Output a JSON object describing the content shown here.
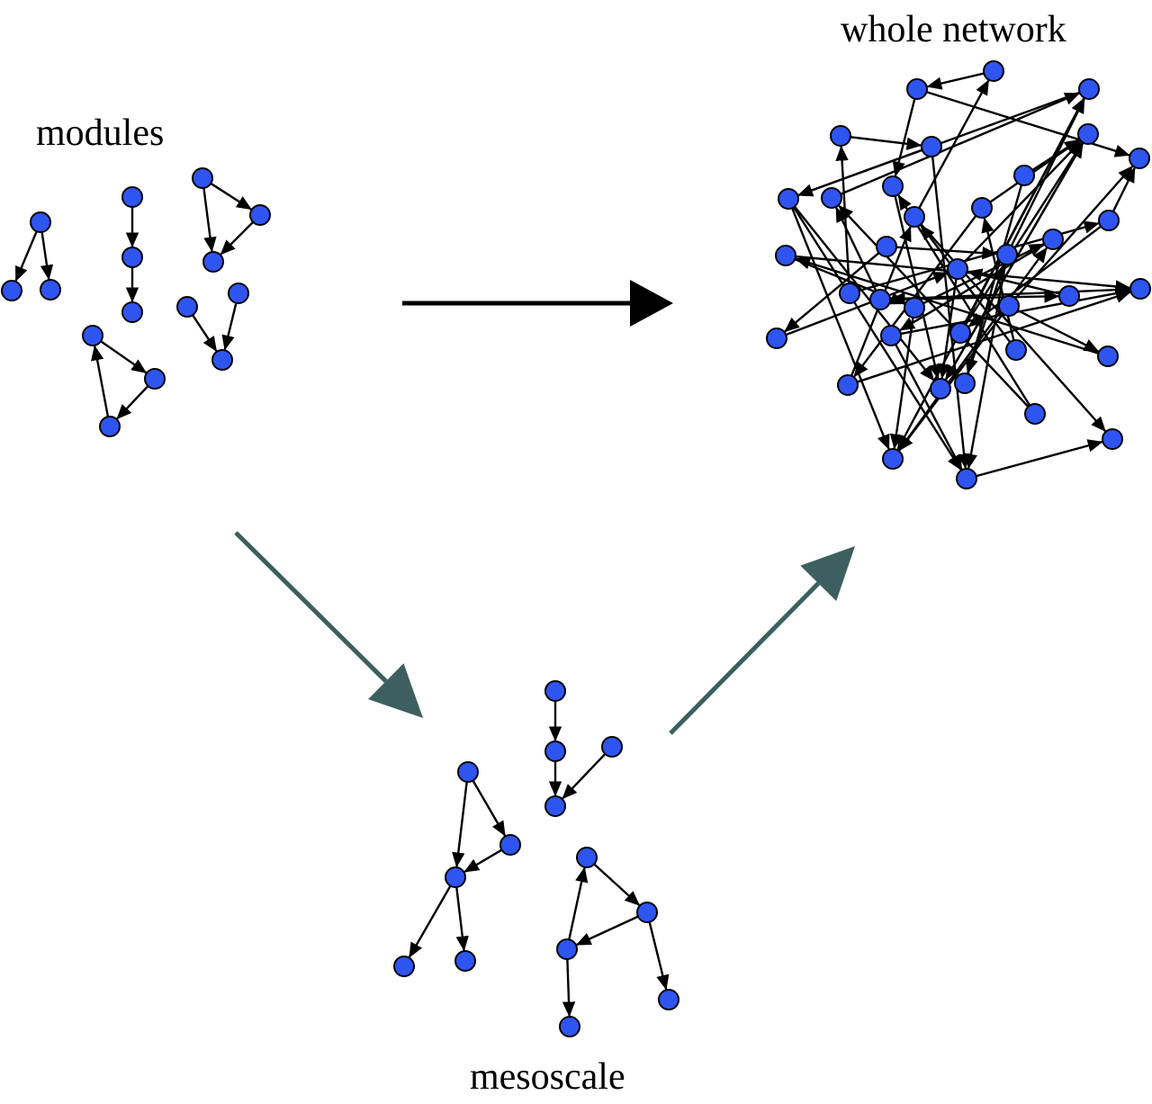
{
  "labels": {
    "modules": "modules",
    "whole_network": "whole network",
    "mesoscale": "mesoscale"
  },
  "colors": {
    "node_fill": "#2f55f0",
    "node_stroke": "#000000",
    "edge": "#000000",
    "main_arrow": "#000000",
    "flow_arrow": "#3d5f5f",
    "background": "#ffffff"
  },
  "flows": [
    {
      "from": "modules",
      "to": "whole network"
    },
    {
      "from": "modules",
      "to": "mesoscale"
    },
    {
      "from": "mesoscale",
      "to": "whole network"
    }
  ]
}
